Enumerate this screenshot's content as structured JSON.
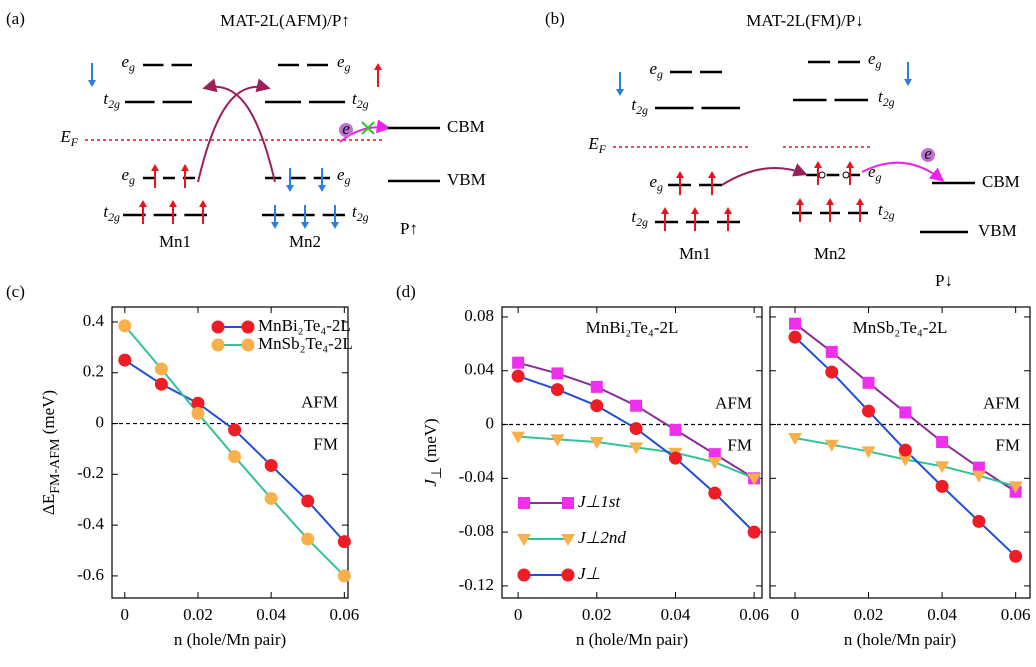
{
  "diagrams": [
    {
      "label": "(a)",
      "title": "MAT-2L(AFM)/P↑",
      "levels": {
        "eg": {
          "main": "e",
          "sub": "g"
        },
        "t2g": {
          "main": "t",
          "sub": "2g"
        }
      },
      "fermi": {
        "main": "E",
        "sub": "F"
      },
      "electron": "e",
      "cbm": "CBM",
      "vbm": "VBM",
      "polarization": "P↑",
      "sites": [
        "Mn1",
        "Mn2"
      ]
    },
    {
      "label": "(b)",
      "title": "MAT-2L(FM)/P↓",
      "levels": {
        "eg": {
          "main": "e",
          "sub": "g"
        },
        "t2g": {
          "main": "t",
          "sub": "2g"
        }
      },
      "fermi": {
        "main": "E",
        "sub": "F"
      },
      "electron": "e",
      "cbm": "CBM",
      "vbm": "VBM",
      "polarization": "P↓",
      "sites": [
        "Mn1",
        "Mn2"
      ]
    }
  ],
  "chart_data": [
    {
      "type": "line",
      "panel_label": "(c)",
      "xlabel": "n (hole/Mn pair)",
      "ylabel": {
        "main": "ΔE",
        "sub": "FM-AFM",
        "unit": " (meV)"
      },
      "x": [
        0,
        0.01,
        0.02,
        0.03,
        0.04,
        0.05,
        0.06
      ],
      "series": [
        {
          "name": "MnBi₂Te₄-2L",
          "color": "#ee1c24",
          "line_color": "#1f4fd6",
          "marker": "circle",
          "values": [
            0.25,
            0.155,
            0.08,
            -0.025,
            -0.165,
            -0.305,
            -0.465
          ]
        },
        {
          "name": "MnSb₂Te₄-2L",
          "color": "#f9b04b",
          "line_color": "#33c29a",
          "marker": "circle",
          "values": [
            0.385,
            0.215,
            0.04,
            -0.13,
            -0.295,
            -0.455,
            -0.6
          ]
        }
      ],
      "xlim": [
        -0.0035,
        0.061
      ],
      "ylim": [
        -0.687,
        0.459
      ],
      "xticks": [
        0,
        0.02,
        0.04,
        0.06
      ],
      "yticks": [
        -0.6,
        -0.4,
        -0.2,
        0,
        0.2,
        0.4
      ],
      "reference_line": 0,
      "annotations": [
        "AFM",
        "FM"
      ],
      "legend": "upper right",
      "ytick_labels": true
    },
    {
      "type": "line",
      "panel_label": "(d)",
      "title": "MnBi₂Te₄-2L",
      "xlabel": "n (hole/Mn pair)",
      "ylabel": {
        "main": "J",
        "sub": "⊥",
        "unit": " (meV)"
      },
      "x": [
        0,
        0.01,
        0.02,
        0.03,
        0.04,
        0.05,
        0.06
      ],
      "series": [
        {
          "name": "J⊥1st",
          "color": "#ee30ee",
          "line_color": "#8b2a9b",
          "marker": "square",
          "values": [
            0.046,
            0.038,
            0.028,
            0.014,
            -0.004,
            -0.022,
            -0.04
          ]
        },
        {
          "name": "J⊥2nd",
          "color": "#f9b04b",
          "line_color": "#33c29a",
          "marker": "triangle-down",
          "values": [
            -0.009,
            -0.011,
            -0.013,
            -0.017,
            -0.021,
            -0.028,
            -0.04
          ]
        },
        {
          "name": "J⊥",
          "color": "#ee1c24",
          "line_color": "#1f4fd6",
          "marker": "circle",
          "values": [
            0.036,
            0.026,
            0.014,
            -0.003,
            -0.025,
            -0.051,
            -0.08
          ]
        }
      ],
      "xlim": [
        -0.0041,
        0.062
      ],
      "ylim": [
        -0.129,
        0.0874
      ],
      "xticks": [
        0,
        0.02,
        0.04,
        0.06
      ],
      "yticks": [
        -0.12,
        -0.08,
        -0.04,
        0,
        0.04,
        0.08
      ],
      "reference_line": 0,
      "annotations": [
        "AFM",
        "FM"
      ],
      "legend": "lower left",
      "ytick_labels": true
    },
    {
      "type": "line",
      "title": "MnSb₂Te₄-2L",
      "xlabel": "n (hole/Mn pair)",
      "x": [
        0,
        0.01,
        0.02,
        0.03,
        0.04,
        0.05,
        0.06
      ],
      "series": [
        {
          "color": "#ee30ee",
          "line_color": "#8b2a9b",
          "marker": "square",
          "values": [
            0.075,
            0.054,
            0.031,
            0.009,
            -0.013,
            -0.032,
            -0.05
          ]
        },
        {
          "color": "#f9b04b",
          "line_color": "#33c29a",
          "marker": "triangle-down",
          "values": [
            -0.01,
            -0.015,
            -0.02,
            -0.026,
            -0.031,
            -0.038,
            -0.046
          ]
        },
        {
          "color": "#ee1c24",
          "line_color": "#1f4fd6",
          "marker": "circle",
          "values": [
            0.065,
            0.039,
            0.01,
            -0.019,
            -0.046,
            -0.072,
            -0.098
          ]
        }
      ],
      "xlim": [
        -0.0068,
        0.0639
      ],
      "ylim": [
        -0.129,
        0.0874
      ],
      "xticks": [
        0,
        0.02,
        0.04,
        0.06
      ],
      "yticks": [
        -0.12,
        -0.08,
        -0.04,
        0,
        0.04,
        0.08
      ],
      "reference_line": 0,
      "annotations": [
        "AFM",
        "FM"
      ],
      "ytick_labels": false
    }
  ]
}
